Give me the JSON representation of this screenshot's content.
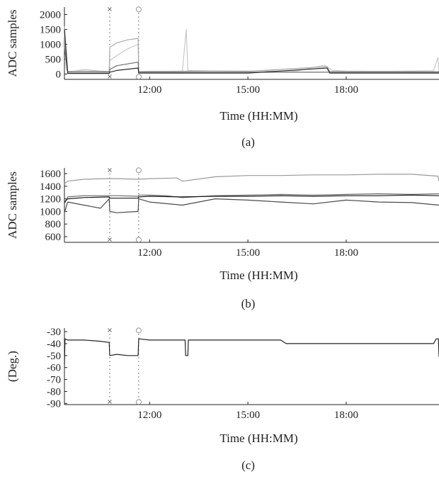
{
  "chart_data": [
    {
      "id": "a",
      "type": "line",
      "caption": "(a)",
      "xlabel": "Time (HH:MM)",
      "ylabel": "ADC samples",
      "xlim": [
        "09:24",
        "20:50"
      ],
      "xticks": [
        "12:00",
        "15:00",
        "18:00"
      ],
      "ylim": [
        -180,
        2250
      ],
      "yticks": [
        0,
        500,
        1000,
        1500,
        2000
      ],
      "event_markers": [
        {
          "time": "10:47",
          "symbol": "×"
        },
        {
          "time": "11:40",
          "symbol": "○"
        }
      ],
      "series": [
        {
          "color": "#c8c8c8",
          "x": [
            "09:24",
            "09:27",
            "09:30",
            "09:40",
            "10:00",
            "10:30",
            "10:46",
            "10:47",
            "11:00",
            "11:20",
            "11:39",
            "11:40",
            "12:00",
            "13:00",
            "13:07",
            "13:10",
            "14:00",
            "16:30",
            "17:20",
            "17:35",
            "18:00",
            "19:00",
            "20:40",
            "20:48",
            "20:50"
          ],
          "y": [
            1400,
            200,
            80,
            90,
            150,
            100,
            90,
            450,
            620,
            850,
            1000,
            80,
            90,
            90,
            1500,
            120,
            100,
            100,
            300,
            120,
            100,
            90,
            110,
            550,
            90
          ]
        },
        {
          "color": "#a9a9a9",
          "x": [
            "09:24",
            "09:30",
            "10:00",
            "10:46",
            "10:47",
            "11:00",
            "11:20",
            "11:39",
            "11:40",
            "12:00",
            "14:00",
            "15:00",
            "17:25",
            "17:30",
            "18:00",
            "19:00",
            "20:50"
          ],
          "y": [
            1600,
            90,
            100,
            80,
            900,
            1050,
            1150,
            1200,
            80,
            90,
            100,
            90,
            250,
            90,
            80,
            90,
            80
          ]
        },
        {
          "color": "#6e6e6e",
          "x": [
            "09:24",
            "09:30",
            "10:46",
            "10:47",
            "11:00",
            "11:39",
            "11:40",
            "13:00",
            "15:00",
            "18:00",
            "20:50"
          ],
          "y": [
            900,
            60,
            60,
            150,
            280,
            400,
            60,
            60,
            60,
            60,
            60
          ]
        },
        {
          "color": "#2a2a2a",
          "x": [
            "09:24",
            "09:30",
            "10:46",
            "10:47",
            "11:00",
            "11:39",
            "11:40",
            "15:00",
            "17:25",
            "17:30",
            "20:50"
          ],
          "y": [
            1500,
            20,
            20,
            60,
            120,
            200,
            30,
            30,
            200,
            30,
            30
          ]
        }
      ]
    },
    {
      "id": "b",
      "type": "line",
      "caption": "(b)",
      "xlabel": "Time (HH:MM)",
      "ylabel": "ADC samples",
      "xlim": [
        "09:24",
        "20:50"
      ],
      "xticks": [
        "12:00",
        "15:00",
        "18:00"
      ],
      "ylim": [
        510,
        1690
      ],
      "yticks": [
        600,
        800,
        1000,
        1200,
        1400,
        1600
      ],
      "event_markers": [
        {
          "time": "10:47",
          "symbol": "×"
        },
        {
          "time": "11:40",
          "symbol": "○"
        }
      ],
      "series": [
        {
          "color": "#9a9a9a",
          "x": [
            "09:24",
            "09:30",
            "10:00",
            "10:40",
            "11:00",
            "11:40",
            "12:00",
            "12:50",
            "13:00",
            "14:00",
            "15:00",
            "16:00",
            "17:00",
            "18:00",
            "19:00",
            "20:00",
            "20:48",
            "20:50"
          ],
          "y": [
            1440,
            1480,
            1510,
            1520,
            1520,
            1510,
            1520,
            1530,
            1480,
            1550,
            1570,
            1570,
            1580,
            1580,
            1590,
            1590,
            1560,
            1480
          ]
        },
        {
          "color": "#6a6a6a",
          "x": [
            "09:24",
            "09:30",
            "10:00",
            "10:46",
            "10:47",
            "11:00",
            "11:39",
            "11:40",
            "12:00",
            "12:30",
            "13:00",
            "14:00",
            "15:00",
            "16:00",
            "17:00",
            "18:00",
            "19:00",
            "20:00",
            "20:50"
          ],
          "y": [
            1120,
            1230,
            1250,
            1250,
            1250,
            1250,
            1240,
            1260,
            1260,
            1250,
            1220,
            1250,
            1260,
            1270,
            1260,
            1270,
            1280,
            1270,
            1280
          ]
        },
        {
          "color": "#4a4a4a",
          "x": [
            "09:24",
            "09:30",
            "10:00",
            "10:30",
            "10:46",
            "10:47",
            "11:00",
            "11:39",
            "11:40",
            "12:00",
            "13:00",
            "14:00",
            "15:00",
            "16:00",
            "17:00",
            "18:00",
            "19:00",
            "20:00",
            "20:50"
          ],
          "y": [
            980,
            1150,
            1100,
            1050,
            1200,
            1000,
            980,
            1000,
            1200,
            1150,
            1100,
            1200,
            1180,
            1150,
            1120,
            1180,
            1150,
            1140,
            1100
          ]
        },
        {
          "color": "#1a1a1a",
          "x": [
            "09:24",
            "09:30",
            "10:00",
            "10:46",
            "10:47",
            "11:39",
            "11:40",
            "12:00",
            "13:00",
            "14:00",
            "15:00",
            "16:00",
            "17:00",
            "18:00",
            "19:00",
            "20:00",
            "20:50"
          ],
          "y": [
            1150,
            1200,
            1220,
            1230,
            1210,
            1210,
            1230,
            1240,
            1230,
            1240,
            1240,
            1250,
            1240,
            1250,
            1250,
            1260,
            1250
          ]
        }
      ]
    },
    {
      "id": "c",
      "type": "line",
      "caption": "(c)",
      "xlabel": "Time (HH:MM)",
      "ylabel": "(Deg.)",
      "xlim": [
        "09:24",
        "20:50"
      ],
      "xticks": [
        "12:00",
        "15:00",
        "18:00"
      ],
      "ylim": [
        -91,
        -27
      ],
      "yticks": [
        -30,
        -40,
        -50,
        -60,
        -70,
        -80,
        -90
      ],
      "event_markers": [
        {
          "time": "10:47",
          "symbol": "×"
        },
        {
          "time": "11:40",
          "symbol": "○"
        }
      ],
      "series": [
        {
          "color": "#222222",
          "x": [
            "09:24",
            "09:25",
            "09:30",
            "10:00",
            "10:30",
            "10:46",
            "10:47",
            "11:00",
            "11:20",
            "11:39",
            "11:40",
            "12:00",
            "12:30",
            "13:05",
            "13:06",
            "13:10",
            "13:11",
            "14:00",
            "15:00",
            "16:00",
            "16:10",
            "17:00",
            "18:00",
            "19:00",
            "20:00",
            "20:40",
            "20:45",
            "20:49",
            "20:50"
          ],
          "y": [
            -58,
            -36,
            -37,
            -37,
            -38,
            -39,
            -50,
            -49,
            -50,
            -50,
            -36,
            -37,
            -37,
            -37,
            -50,
            -50,
            -37,
            -37,
            -37,
            -37,
            -40,
            -40,
            -40,
            -40,
            -40,
            -40,
            -36,
            -36,
            -51
          ]
        }
      ]
    }
  ]
}
